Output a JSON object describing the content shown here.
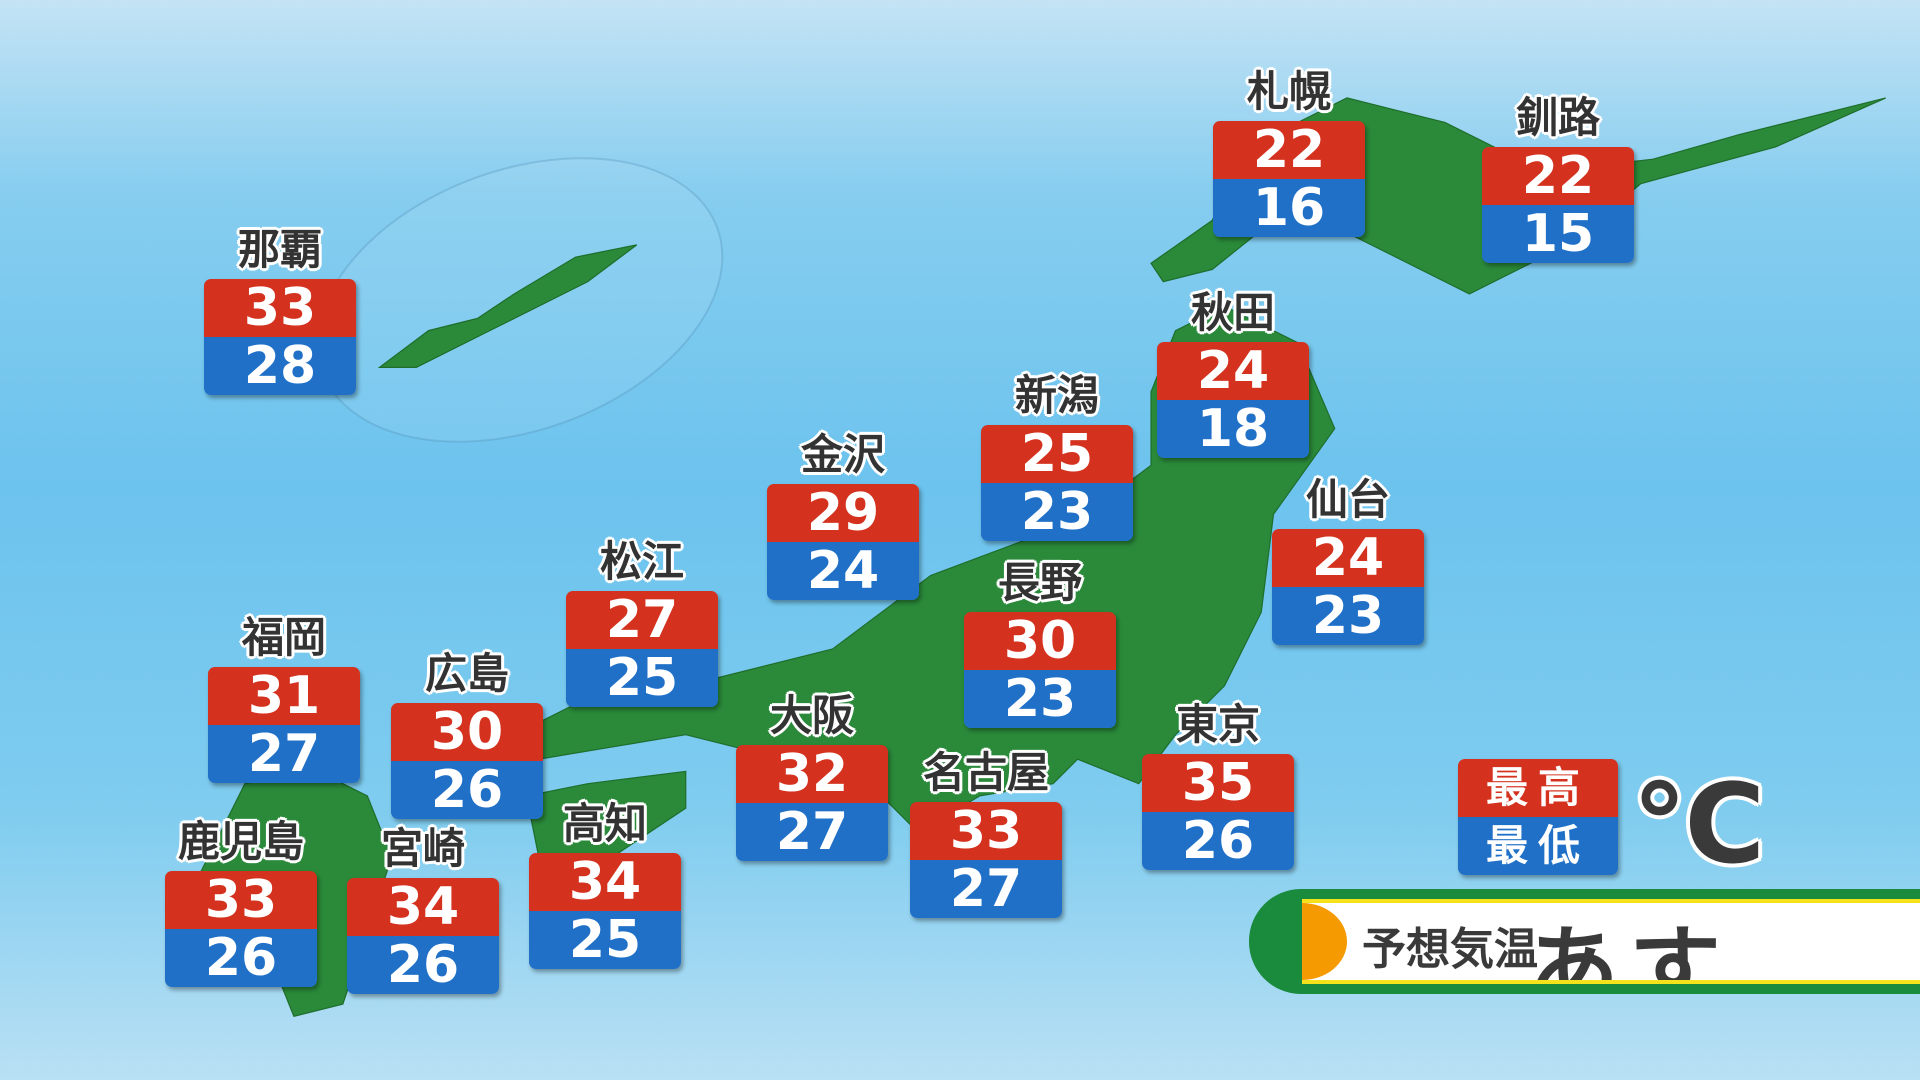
{
  "title": "予想気温",
  "day": "あす",
  "legend": {
    "high": "最高",
    "low": "最低",
    "unit": "℃"
  },
  "colors": {
    "high": "#d4311e",
    "low": "#2070c8",
    "land": "#2a8a3a",
    "banner_green": "#1a8a3c",
    "banner_orange": "#f59a00"
  },
  "cities": [
    {
      "name": "札幌",
      "high": "22",
      "low": "16"
    },
    {
      "name": "釧路",
      "high": "22",
      "low": "15"
    },
    {
      "name": "那覇",
      "high": "33",
      "low": "28"
    },
    {
      "name": "秋田",
      "high": "24",
      "low": "18"
    },
    {
      "name": "新潟",
      "high": "25",
      "low": "23"
    },
    {
      "name": "金沢",
      "high": "29",
      "low": "24"
    },
    {
      "name": "仙台",
      "high": "24",
      "low": "23"
    },
    {
      "name": "松江",
      "high": "27",
      "low": "25"
    },
    {
      "name": "長野",
      "high": "30",
      "low": "23"
    },
    {
      "name": "福岡",
      "high": "31",
      "low": "27"
    },
    {
      "name": "広島",
      "high": "30",
      "low": "26"
    },
    {
      "name": "大阪",
      "high": "32",
      "low": "27"
    },
    {
      "name": "名古屋",
      "high": "33",
      "low": "27"
    },
    {
      "name": "東京",
      "high": "35",
      "low": "26"
    },
    {
      "name": "鹿児島",
      "high": "33",
      "low": "26"
    },
    {
      "name": "宮崎",
      "high": "34",
      "low": "26"
    },
    {
      "name": "高知",
      "high": "34",
      "low": "25"
    }
  ]
}
